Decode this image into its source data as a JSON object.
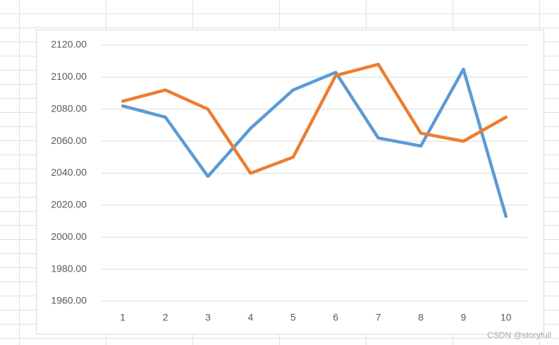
{
  "chart_data": {
    "type": "line",
    "categories": [
      1,
      2,
      3,
      4,
      5,
      6,
      7,
      8,
      9,
      10
    ],
    "series": [
      {
        "color": "#5b9bd5",
        "values": [
          2082,
          2075,
          2038,
          2068,
          2092,
          2103,
          2062,
          2057,
          2105,
          2013
        ]
      },
      {
        "color": "#ed7d31",
        "values": [
          2085,
          2092,
          2080,
          2040,
          2050,
          2101,
          2108,
          2065,
          2060,
          2075
        ]
      }
    ],
    "ylim": [
      1960,
      2120
    ],
    "yticks": [
      {
        "value": 1960,
        "label": "1960.00"
      },
      {
        "value": 1980,
        "label": "1980.00"
      },
      {
        "value": 2000,
        "label": "2000.00"
      },
      {
        "value": 2020,
        "label": "2020.00"
      },
      {
        "value": 2040,
        "label": "2040.00"
      },
      {
        "value": 2060,
        "label": "2060.00"
      },
      {
        "value": 2080,
        "label": "2080.00"
      },
      {
        "value": 2100,
        "label": "2100.00"
      },
      {
        "value": 2120,
        "label": "2120.00"
      }
    ],
    "grid": true
  },
  "watermark": "CSDN @storyfull"
}
